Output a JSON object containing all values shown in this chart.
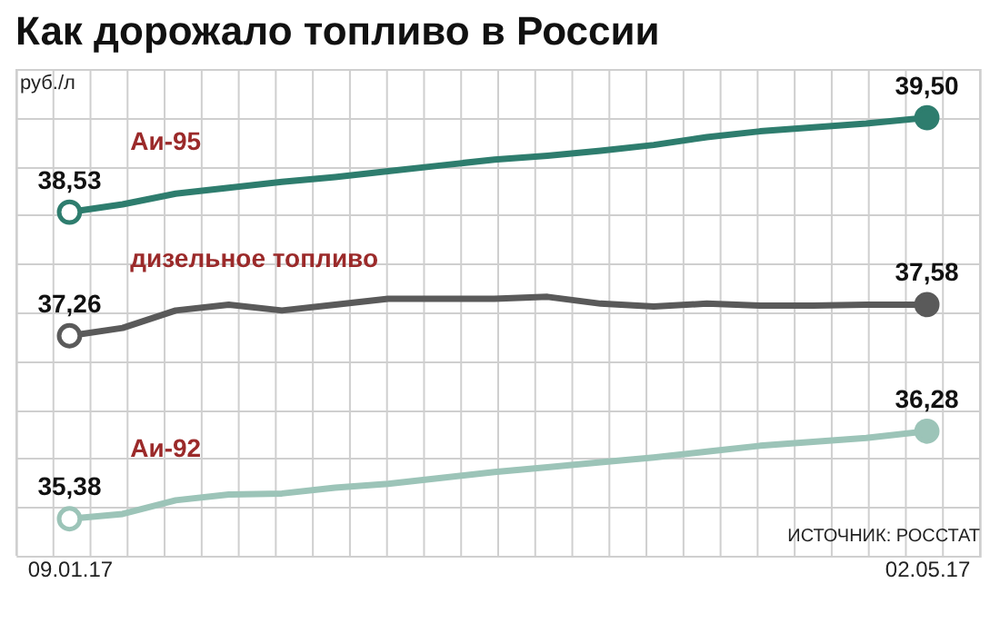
{
  "chart_data": {
    "type": "line",
    "title": "Как дорожало топливо в России",
    "ylabel": "руб./л",
    "x": [
      "2017-01-09",
      "2017-01-16",
      "2017-01-23",
      "2017-01-30",
      "2017-02-06",
      "2017-02-13",
      "2017-02-20",
      "2017-02-27",
      "2017-03-06",
      "2017-03-13",
      "2017-03-20",
      "2017-03-27",
      "2017-04-03",
      "2017-04-10",
      "2017-04-17",
      "2017-04-24",
      "2017-05-02"
    ],
    "xlim": [
      "2017-01-02",
      "2017-05-09"
    ],
    "xticks": [
      {
        "value": "2017-01-09",
        "label": "09.01.17"
      },
      {
        "value": "2017-05-02",
        "label": "02.05.17"
      }
    ],
    "ylim": [
      35.0,
      40.0
    ],
    "tick_labels": "x",
    "grid": true,
    "line_style": "solid",
    "series": [
      {
        "name": "Аи-95",
        "color": "#2e7d6e",
        "values": [
          38.53,
          38.61,
          38.72,
          38.78,
          38.84,
          38.89,
          38.95,
          39.01,
          39.07,
          39.11,
          39.16,
          39.22,
          39.3,
          39.36,
          39.4,
          39.44,
          39.5
        ],
        "value_labels": [
          "38,53",
          null,
          null,
          null,
          null,
          null,
          null,
          null,
          null,
          null,
          null,
          null,
          null,
          null,
          null,
          null,
          "39,50"
        ]
      },
      {
        "name": "дизельное топливо",
        "color": "#5a5a5a",
        "values": [
          37.26,
          37.34,
          37.52,
          37.58,
          37.52,
          37.58,
          37.64,
          37.64,
          37.64,
          37.66,
          37.59,
          37.56,
          37.59,
          37.57,
          37.57,
          37.58,
          37.58
        ],
        "value_labels": [
          "37,26",
          null,
          null,
          null,
          null,
          null,
          null,
          null,
          null,
          null,
          null,
          null,
          null,
          null,
          null,
          null,
          "37,58"
        ]
      },
      {
        "name": "Аи-92",
        "color": "#9cc4b8",
        "values": [
          35.38,
          35.43,
          35.57,
          35.63,
          35.64,
          35.7,
          35.74,
          35.8,
          35.86,
          35.91,
          35.96,
          36.01,
          36.07,
          36.13,
          36.17,
          36.21,
          36.28
        ],
        "value_labels": [
          "35,38",
          null,
          null,
          null,
          null,
          null,
          null,
          null,
          null,
          null,
          null,
          null,
          null,
          null,
          null,
          null,
          "36,28"
        ]
      }
    ],
    "annotations": [
      "ИСТОЧНИК: РОССТАТ"
    ]
  }
}
